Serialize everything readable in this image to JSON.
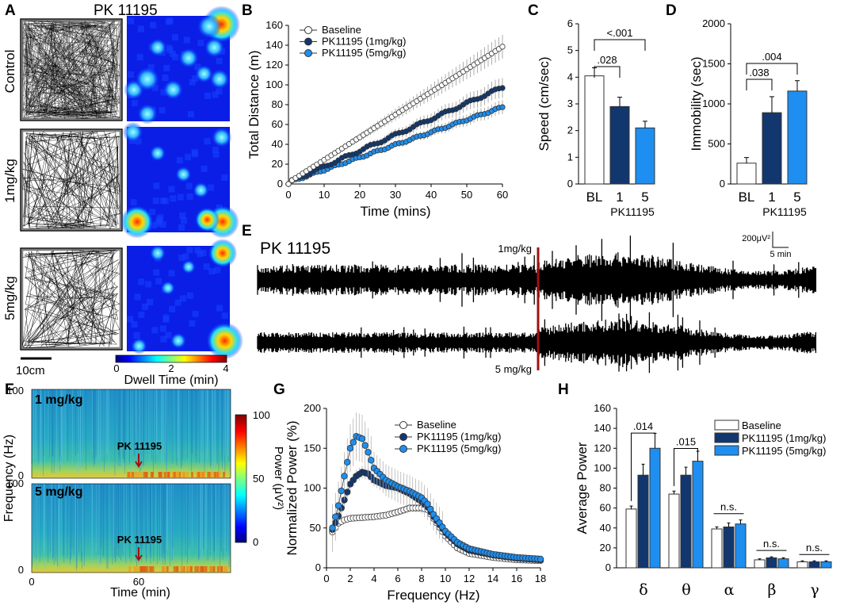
{
  "panels": {
    "A": {
      "label": "A",
      "title": "PK 11195",
      "rows": [
        "Control",
        "1mg/kg",
        "5mg/kg"
      ],
      "scale_bar": "10cm",
      "colorbar_title": "Dwell Time (min)",
      "colorbar_ticks": [
        "0",
        "2",
        "4"
      ]
    },
    "E": {
      "label": "E",
      "title": "PK 11195",
      "marker_top": "1mg/kg",
      "marker_bottom": "5 mg/kg",
      "scale_v": "200μV²",
      "scale_t": "5 min"
    },
    "F": {
      "label": "F",
      "panels": [
        "1 mg/kg",
        "5 mg/kg"
      ],
      "annotation": "PK 11195",
      "ylabel": "Frequency (Hz)",
      "xlabel": "Time (min)",
      "yticks": [
        "0",
        "100"
      ],
      "xticks": [
        "0",
        "60"
      ],
      "colorbar_title": "Power (μV²)",
      "colorbar_ticks": [
        "0",
        "50",
        "100"
      ]
    }
  },
  "colors": {
    "baseline": "#ffffff",
    "low": "#12376e",
    "high": "#1e8ff0",
    "marker": "#a01010"
  },
  "chart_data": [
    {
      "id": "B",
      "label": "B",
      "type": "line",
      "xlabel": "Time (mins)",
      "ylabel": "Total Distance (m)",
      "xlim": [
        0,
        60
      ],
      "ylim": [
        0,
        160
      ],
      "xticks": [
        0,
        10,
        20,
        30,
        40,
        50,
        60
      ],
      "yticks": [
        0,
        20,
        40,
        60,
        80,
        100,
        120,
        140,
        160
      ],
      "series": [
        {
          "name": "Baseline",
          "end": 137,
          "err_end": 12
        },
        {
          "name": "PK11195 (1mg/kg)",
          "end": 96,
          "err_end": 10
        },
        {
          "name": "PK11195 (5mg/kg)",
          "end": 76,
          "err_end": 7
        }
      ]
    },
    {
      "id": "C",
      "label": "C",
      "type": "bar",
      "ylabel": "Speed (cm/sec)",
      "ylim": [
        0,
        6
      ],
      "yticks": [
        0,
        1,
        2,
        3,
        4,
        5,
        6
      ],
      "categories": [
        "BL",
        "1",
        "5"
      ],
      "group_label": "PK11195",
      "values": [
        4.05,
        2.9,
        2.1
      ],
      "errors": [
        0.3,
        0.35,
        0.25
      ],
      "significance": [
        {
          "from": 0,
          "to": 1,
          "text": ".028"
        },
        {
          "from": 0,
          "to": 2,
          "text": "<.001"
        }
      ]
    },
    {
      "id": "D",
      "label": "D",
      "type": "bar",
      "ylabel": "Immobility (sec)",
      "ylim": [
        0,
        2000
      ],
      "yticks": [
        0,
        500,
        1000,
        1500,
        2000
      ],
      "categories": [
        "BL",
        "1",
        "5"
      ],
      "group_label": "PK11195",
      "values": [
        260,
        890,
        1160
      ],
      "errors": [
        70,
        200,
        130
      ],
      "significance": [
        {
          "from": 0,
          "to": 1,
          "text": ".038"
        },
        {
          "from": 0,
          "to": 2,
          "text": ".004"
        }
      ]
    },
    {
      "id": "G",
      "label": "G",
      "type": "line",
      "xlabel": "Frequency (Hz)",
      "ylabel": "Normalized Power (%)",
      "xlim": [
        0,
        18
      ],
      "ylim": [
        0,
        200
      ],
      "xticks": [
        0,
        2,
        4,
        6,
        8,
        10,
        12,
        14,
        16,
        18
      ],
      "yticks": [
        0,
        50,
        100,
        150,
        200
      ],
      "series": [
        {
          "name": "Baseline",
          "x": [
            0.5,
            1,
            1.5,
            2,
            3,
            4,
            5,
            6,
            7,
            8,
            8.5,
            9,
            10,
            11,
            12,
            14,
            16,
            18
          ],
          "y": [
            45,
            56,
            60,
            62,
            63,
            64,
            66,
            70,
            75,
            75,
            73,
            62,
            40,
            25,
            18,
            13,
            10,
            9
          ]
        },
        {
          "name": "PK11195 (1mg/kg)",
          "x": [
            0.5,
            1,
            1.5,
            2,
            2.5,
            3,
            3.5,
            4,
            5,
            6,
            7,
            8,
            8.5,
            9,
            10,
            11,
            12,
            14,
            16,
            18
          ],
          "y": [
            48,
            65,
            85,
            105,
            115,
            120,
            118,
            110,
            103,
            100,
            93,
            83,
            76,
            64,
            44,
            30,
            22,
            16,
            12,
            10
          ]
        },
        {
          "name": "PK11195 (5mg/kg)",
          "x": [
            0.5,
            1,
            1.5,
            2,
            2.5,
            3,
            3.5,
            4,
            5,
            6,
            7,
            8,
            8.5,
            9,
            10,
            11,
            12,
            14,
            16,
            18
          ],
          "y": [
            50,
            78,
            115,
            150,
            165,
            162,
            145,
            125,
            110,
            102,
            96,
            88,
            80,
            67,
            46,
            32,
            24,
            17,
            13,
            11
          ]
        }
      ]
    },
    {
      "id": "H",
      "label": "H",
      "type": "bar",
      "ylabel": "Average Power",
      "ylim": [
        0,
        160
      ],
      "yticks": [
        0,
        20,
        40,
        60,
        80,
        100,
        120,
        140,
        160
      ],
      "categories": [
        "δ",
        "θ",
        "α",
        "β",
        "γ"
      ],
      "series": [
        {
          "name": "Baseline",
          "values": [
            59,
            74,
            39,
            8,
            6
          ],
          "errors": [
            3,
            3,
            2,
            1,
            1
          ]
        },
        {
          "name": "PK11195 (1mg/kg)",
          "values": [
            93,
            93,
            41,
            10,
            6
          ],
          "errors": [
            11,
            8,
            4,
            1,
            1
          ]
        },
        {
          "name": "PK11195 (5mg/kg)",
          "values": [
            120,
            107,
            44,
            9,
            6
          ],
          "errors": [
            15,
            10,
            4,
            1,
            1
          ]
        }
      ],
      "significance": [
        {
          "cat": 0,
          "text": ".014"
        },
        {
          "cat": 1,
          "text": ".015"
        },
        {
          "cat": 2,
          "text": "n.s."
        },
        {
          "cat": 3,
          "text": "n.s."
        },
        {
          "cat": 4,
          "text": "n.s."
        }
      ]
    }
  ]
}
